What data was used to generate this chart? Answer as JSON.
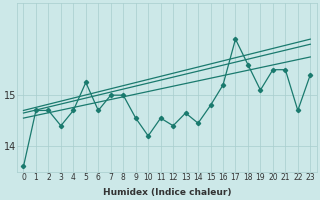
{
  "xlabel": "Humidex (Indice chaleur)",
  "x": [
    0,
    1,
    2,
    3,
    4,
    5,
    6,
    7,
    8,
    9,
    10,
    11,
    12,
    13,
    14,
    15,
    16,
    17,
    18,
    19,
    20,
    21,
    22,
    23
  ],
  "y_main": [
    13.6,
    14.7,
    14.7,
    14.4,
    14.7,
    15.25,
    14.7,
    15.0,
    15.0,
    14.55,
    14.2,
    14.55,
    14.4,
    14.65,
    14.45,
    14.8,
    15.2,
    16.1,
    15.6,
    15.1,
    15.5,
    15.5,
    14.7,
    15.4
  ],
  "trend1_x": [
    0,
    23
  ],
  "trend1_y": [
    14.55,
    15.75
  ],
  "trend2_x": [
    0,
    23
  ],
  "trend2_y": [
    14.65,
    16.0
  ],
  "trend3_x": [
    0,
    23
  ],
  "trend3_y": [
    14.7,
    16.1
  ],
  "ylim": [
    13.5,
    16.8
  ],
  "yticks": [
    14,
    15
  ],
  "xlim": [
    -0.5,
    23.5
  ],
  "line_color": "#1a7a6e",
  "bg_color": "#cce8e8",
  "grid_color": "#a8cece",
  "font_color": "#333333",
  "tick_fontsize": 5.5,
  "label_fontsize": 6.5
}
